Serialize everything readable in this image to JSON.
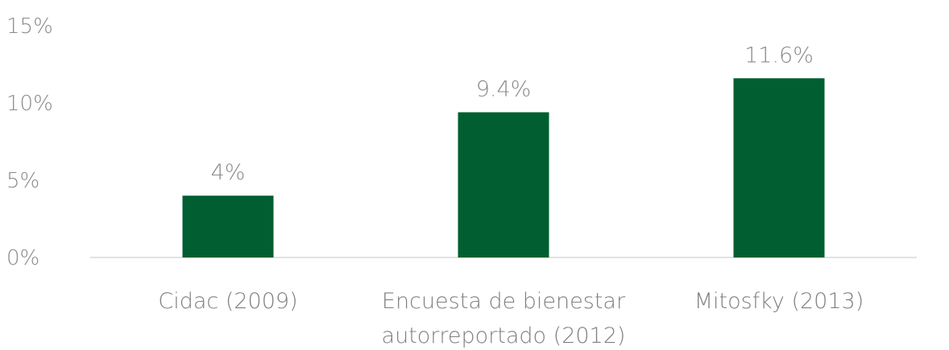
{
  "chart_data": {
    "type": "bar",
    "categories": [
      [
        "Cidac (2009)"
      ],
      [
        "Encuesta de bienestar",
        "autorreportado (2012)"
      ],
      [
        "Mitosfky (2013)"
      ]
    ],
    "values": [
      4,
      9.4,
      11.6
    ],
    "data_labels": [
      "4%",
      "9.4%",
      "11.6%"
    ],
    "y_ticks": [
      {
        "value": 0,
        "label": "0%"
      },
      {
        "value": 5,
        "label": "5%"
      },
      {
        "value": 10,
        "label": "10%"
      },
      {
        "value": 15,
        "label": "15%"
      }
    ],
    "ylim": [
      0,
      15
    ],
    "grid": false,
    "legend": "none",
    "bar_color": "#005e30",
    "axis_color": "#d9d9d9"
  }
}
